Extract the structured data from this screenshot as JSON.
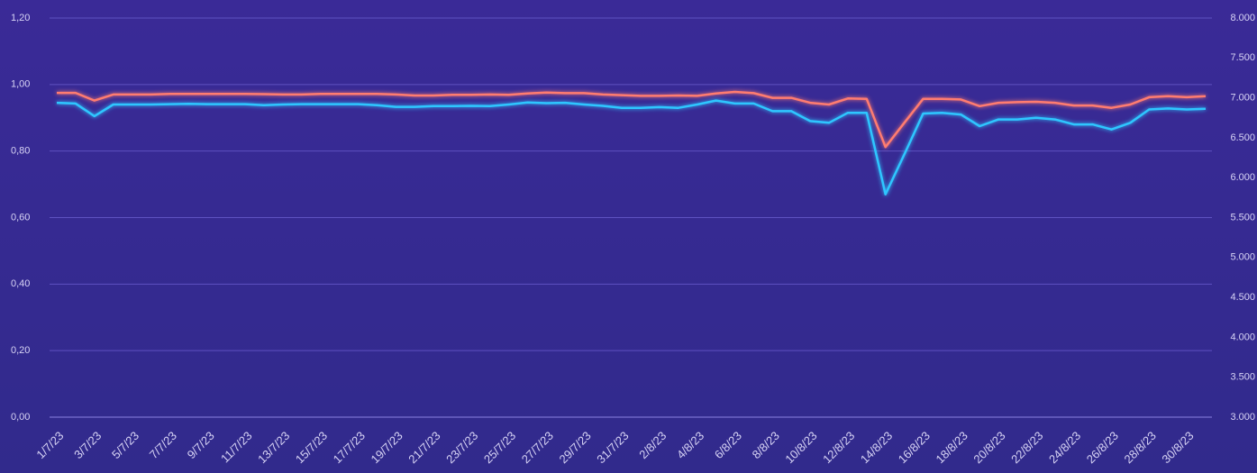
{
  "chart_data": {
    "type": "line",
    "categories": [
      "1/7/23",
      null,
      "3/7/23",
      null,
      "5/7/23",
      null,
      "7/7/23",
      null,
      "9/7/23",
      null,
      "11/7/23",
      null,
      "13/7/23",
      null,
      "15/7/23",
      null,
      "17/7/23",
      null,
      "19/7/23",
      null,
      "21/7/23",
      null,
      "23/7/23",
      null,
      "25/7/23",
      null,
      "27/7/23",
      null,
      "29/7/23",
      null,
      "31/7/23",
      null,
      "2/8/23",
      null,
      "4/8/23",
      null,
      "6/8/23",
      null,
      "8/8/23",
      null,
      "10/8/23",
      null,
      "12/8/23",
      null,
      "14/8/23",
      null,
      "16/8/23",
      null,
      "18/8/23",
      null,
      "20/8/23",
      null,
      "22/8/23",
      null,
      "24/8/23",
      null,
      "26/8/23",
      null,
      "28/8/23",
      null,
      "30/8/23",
      null
    ],
    "series": [
      {
        "color": "#ff7b6f",
        "values": [
          0.975,
          0.975,
          0.952,
          0.97,
          0.97,
          0.97,
          0.972,
          0.972,
          0.972,
          0.972,
          0.972,
          0.971,
          0.97,
          0.97,
          0.972,
          0.972,
          0.972,
          0.972,
          0.97,
          0.967,
          0.967,
          0.969,
          0.969,
          0.97,
          0.969,
          0.973,
          0.976,
          0.974,
          0.974,
          0.97,
          0.968,
          0.966,
          0.966,
          0.967,
          0.966,
          0.973,
          0.978,
          0.974,
          0.96,
          0.96,
          0.945,
          0.94,
          0.958,
          0.957,
          0.812,
          0.885,
          0.957,
          0.957,
          0.955,
          0.935,
          0.945,
          0.947,
          0.948,
          0.945,
          0.937,
          0.937,
          0.93,
          0.94,
          0.962,
          0.965,
          0.962,
          0.965
        ]
      },
      {
        "color": "#2fc6ff",
        "values": [
          0.945,
          0.943,
          0.905,
          0.94,
          0.94,
          0.94,
          0.941,
          0.942,
          0.941,
          0.941,
          0.941,
          0.938,
          0.94,
          0.941,
          0.941,
          0.941,
          0.941,
          0.938,
          0.933,
          0.933,
          0.935,
          0.935,
          0.936,
          0.935,
          0.94,
          0.946,
          0.944,
          0.945,
          0.94,
          0.936,
          0.93,
          0.93,
          0.932,
          0.93,
          0.94,
          0.952,
          0.943,
          0.943,
          0.92,
          0.92,
          0.89,
          0.885,
          0.915,
          0.915,
          0.67,
          0.79,
          0.913,
          0.915,
          0.91,
          0.875,
          0.895,
          0.895,
          0.9,
          0.895,
          0.88,
          0.88,
          0.865,
          0.885,
          0.925,
          0.928,
          0.925,
          0.927
        ]
      }
    ],
    "ylim": [
      0,
      1.2
    ],
    "yticks": [
      {
        "value": 0,
        "label": "0,00"
      },
      {
        "value": 0.2,
        "label": "0,20"
      },
      {
        "value": 0.4,
        "label": "0,40"
      },
      {
        "value": 0.6,
        "label": "0,60"
      },
      {
        "value": 0.8,
        "label": "0,80"
      },
      {
        "value": 1,
        "label": "1,00"
      },
      {
        "value": 1.2,
        "label": "1,20"
      }
    ],
    "y2lim": [
      3000,
      8000
    ],
    "y2ticks": [
      {
        "value": 3000,
        "label": "3.000"
      },
      {
        "value": 3500,
        "label": "3.500"
      },
      {
        "value": 4000,
        "label": "4.000"
      },
      {
        "value": 4500,
        "label": "4.500"
      },
      {
        "value": 5000,
        "label": "5.000"
      },
      {
        "value": 5500,
        "label": "5.500"
      },
      {
        "value": 6000,
        "label": "6.000"
      },
      {
        "value": 6500,
        "label": "6.500"
      },
      {
        "value": 7000,
        "label": "7.000"
      },
      {
        "value": 7500,
        "label": "7.500"
      },
      {
        "value": 8000,
        "label": "8.000"
      }
    ],
    "grid": true
  }
}
